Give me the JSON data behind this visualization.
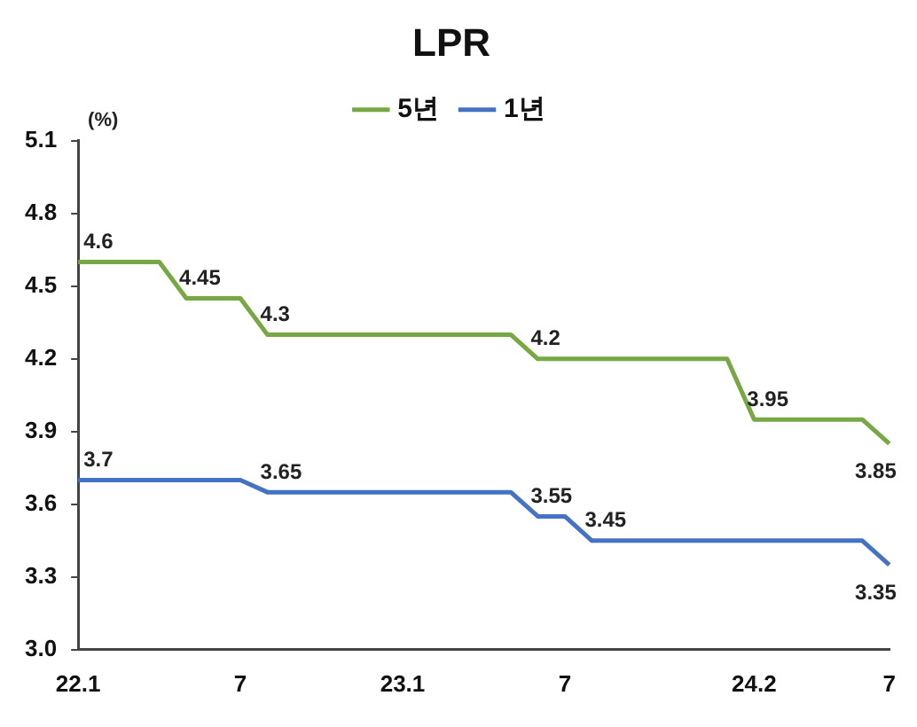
{
  "chart_data": {
    "type": "line",
    "title": "LPR",
    "ylabel": "(%)",
    "categories": [
      "22.1",
      null,
      null,
      null,
      null,
      null,
      "7",
      null,
      null,
      null,
      null,
      null,
      "23.1",
      null,
      null,
      null,
      null,
      null,
      "7",
      null,
      null,
      null,
      null,
      null,
      null,
      "24.2",
      null,
      null,
      null,
      null,
      "7"
    ],
    "series": [
      {
        "name": "5년",
        "color": "#77a844",
        "values": [
          4.6,
          4.6,
          4.6,
          4.6,
          4.45,
          4.45,
          4.45,
          4.3,
          4.3,
          4.3,
          4.3,
          4.3,
          4.3,
          4.3,
          4.3,
          4.3,
          4.3,
          4.2,
          4.2,
          4.2,
          4.2,
          4.2,
          4.2,
          4.2,
          4.2,
          3.95,
          3.95,
          3.95,
          3.95,
          3.95,
          3.85
        ],
        "value_labels": [
          "4.6",
          null,
          null,
          null,
          "4.45",
          null,
          null,
          "4.3",
          null,
          null,
          null,
          null,
          null,
          null,
          null,
          null,
          null,
          "4.2",
          null,
          null,
          null,
          null,
          null,
          null,
          null,
          "3.95",
          null,
          null,
          null,
          null,
          "3.85"
        ]
      },
      {
        "name": "1년",
        "color": "#4472c4",
        "values": [
          3.7,
          3.7,
          3.7,
          3.7,
          3.7,
          3.7,
          3.7,
          3.65,
          3.65,
          3.65,
          3.65,
          3.65,
          3.65,
          3.65,
          3.65,
          3.65,
          3.65,
          3.55,
          3.55,
          3.45,
          3.45,
          3.45,
          3.45,
          3.45,
          3.45,
          3.45,
          3.45,
          3.45,
          3.45,
          3.45,
          3.35
        ],
        "value_labels": [
          "3.7",
          null,
          null,
          null,
          null,
          null,
          null,
          "3.65",
          null,
          null,
          null,
          null,
          null,
          null,
          null,
          null,
          null,
          "3.55",
          null,
          "3.45",
          null,
          null,
          null,
          null,
          null,
          null,
          null,
          null,
          null,
          null,
          "3.35"
        ]
      }
    ],
    "ylim": [
      3.0,
      5.1
    ],
    "yticks": [
      {
        "value": 3.0,
        "label": "3.0"
      },
      3.3,
      3.6,
      3.9,
      4.2,
      4.5,
      4.8,
      5.1
    ],
    "grid": false,
    "legend": "top",
    "marker": "none",
    "line_style": "solid"
  }
}
